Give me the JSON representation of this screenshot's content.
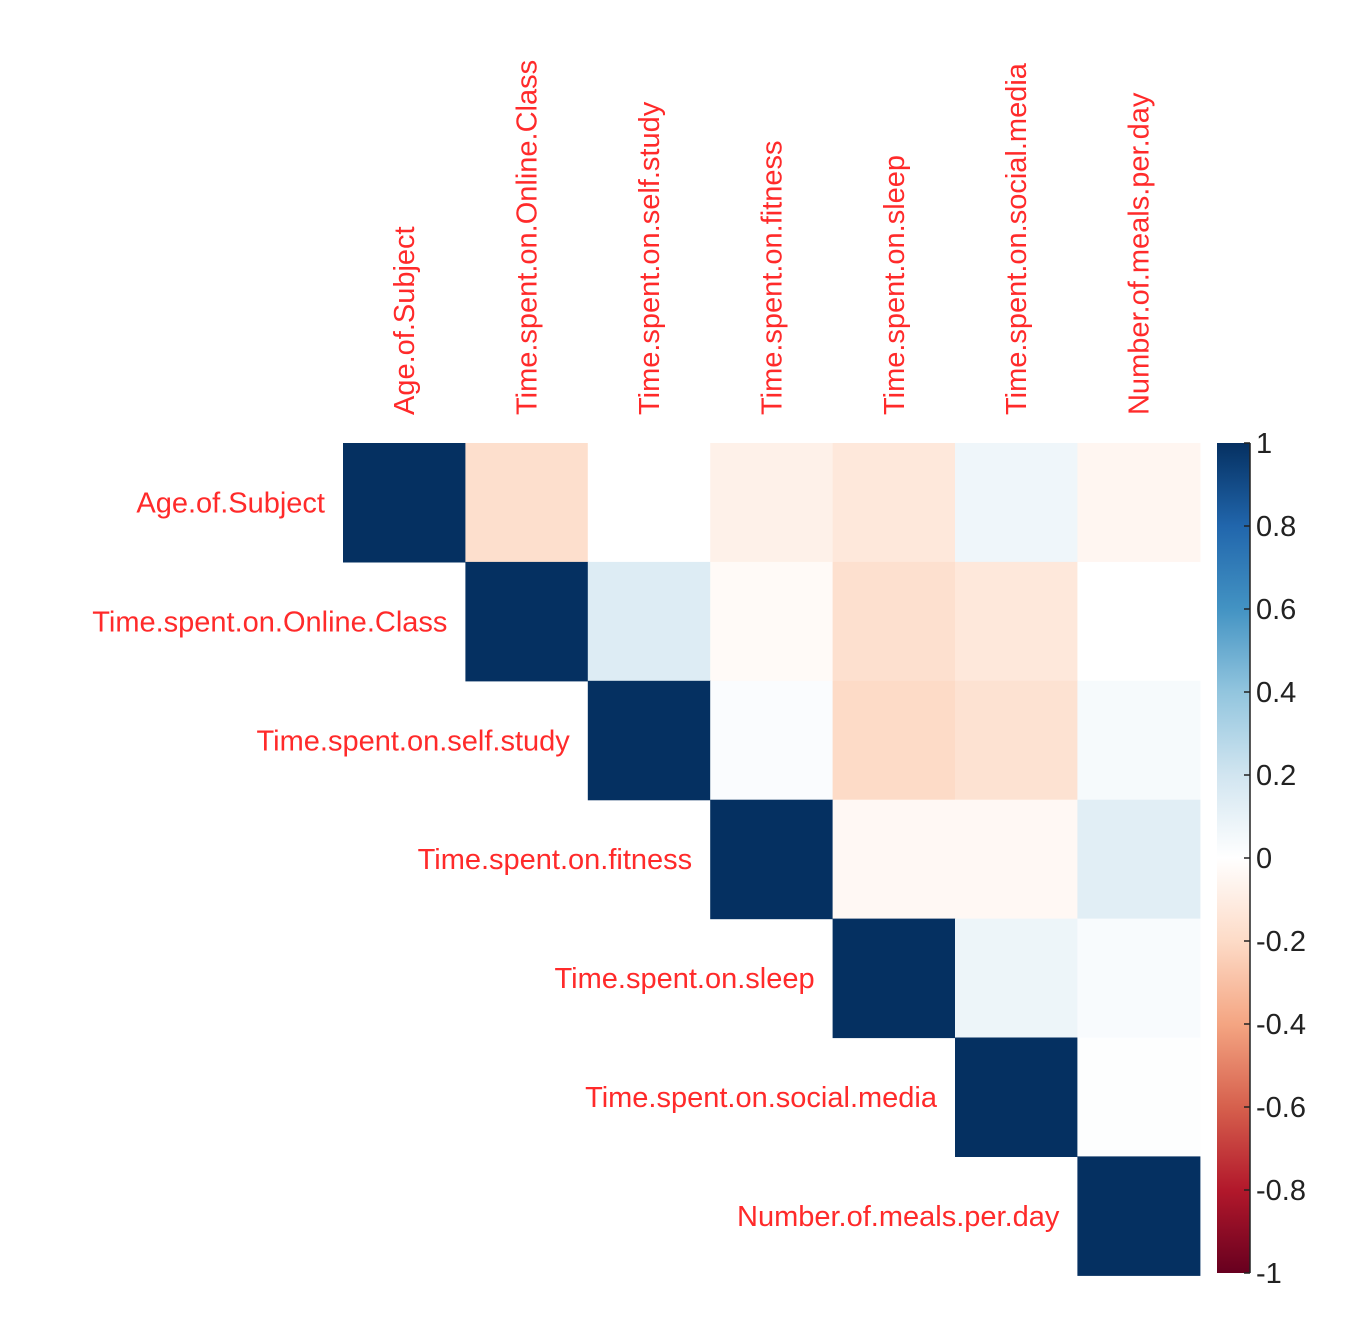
{
  "colors": {
    "label": "#ff2a2a",
    "positive": "#053061",
    "negative": "#67001f",
    "neutral": "#ffffff",
    "scale": [
      "#67001f",
      "#b2182b",
      "#d6604d",
      "#f4a582",
      "#fddbc7",
      "#ffffff",
      "#d1e5f0",
      "#92c5de",
      "#4393c3",
      "#2166ac",
      "#053061"
    ]
  },
  "chart_data": {
    "type": "heatmap",
    "variant": "correlation matrix, upper triangle with diagonal",
    "row_labels": [
      "Age.of.Subject",
      "Time.spent.on.Online.Class",
      "Time.spent.on.self.study",
      "Time.spent.on.fitness",
      "Time.spent.on.sleep",
      "Time.spent.on.social.media",
      "Number.of.meals.per.day"
    ],
    "col_labels": [
      "Age.of.Subject",
      "Time.spent.on.Online.Class",
      "Time.spent.on.self.study",
      "Time.spent.on.fitness",
      "Time.spent.on.sleep",
      "Time.spent.on.social.media",
      "Number.of.meals.per.day"
    ],
    "values": [
      [
        1,
        -0.18,
        0.0,
        -0.08,
        -0.13,
        0.07,
        -0.05
      ],
      [
        null,
        1,
        0.15,
        -0.03,
        -0.17,
        -0.13,
        0.0
      ],
      [
        null,
        null,
        1,
        0.02,
        -0.2,
        -0.16,
        0.04
      ],
      [
        null,
        null,
        null,
        1,
        -0.04,
        -0.04,
        0.13
      ],
      [
        null,
        null,
        null,
        null,
        1,
        0.08,
        0.03
      ],
      [
        null,
        null,
        null,
        null,
        null,
        1,
        0.01
      ],
      [
        null,
        null,
        null,
        null,
        null,
        null,
        1
      ]
    ],
    "color_range": [
      -1,
      1
    ],
    "colorbar_ticks": [
      "1",
      "0.8",
      "0.6",
      "0.4",
      "0.2",
      "0",
      "-0.2",
      "-0.4",
      "-0.6",
      "-0.8",
      "-1"
    ],
    "colorbar_tick_values": [
      1,
      0.8,
      0.6,
      0.4,
      0.2,
      0,
      -0.2,
      -0.4,
      -0.6,
      -0.8,
      -1
    ],
    "legend_position": "right"
  }
}
